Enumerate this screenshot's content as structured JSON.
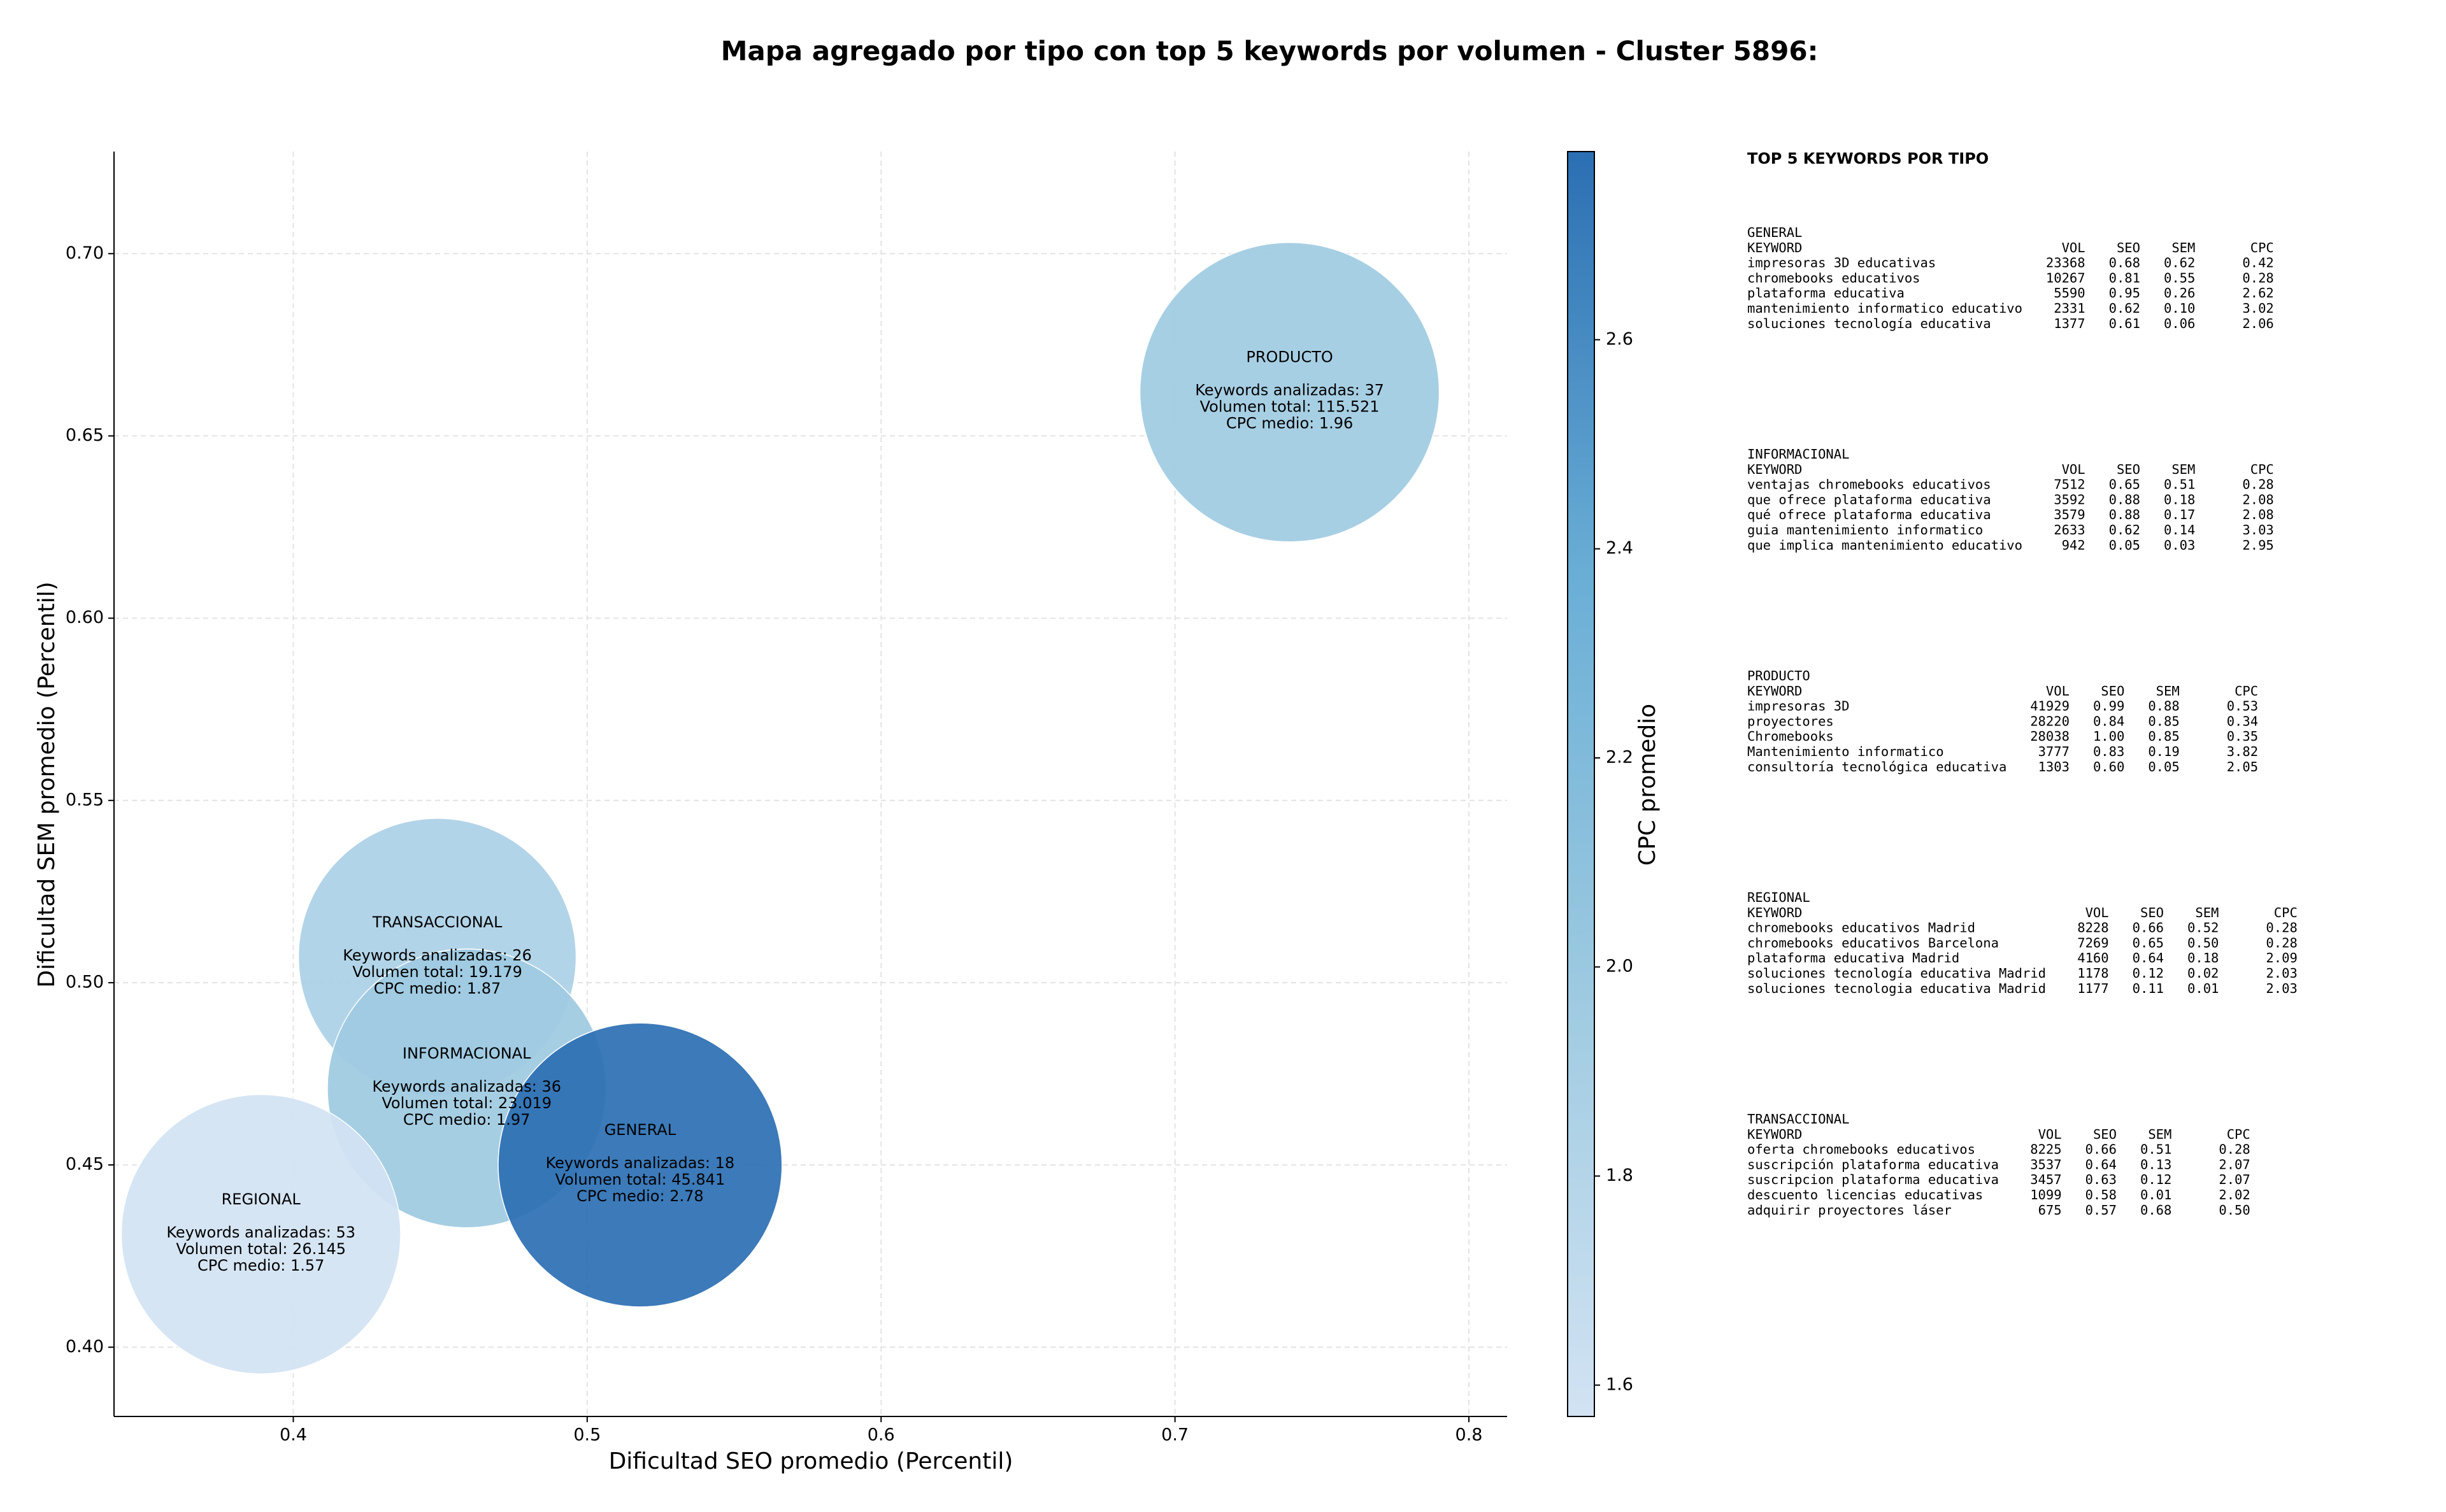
{
  "chart_data": {
    "type": "scatter",
    "title": "Mapa agregado por tipo con top 5 keywords por volumen - Cluster 5896:",
    "x_label": "Dificultad SEO promedio (Percentil)",
    "y_label": "Dificultad SEM promedio (Percentil)",
    "xlim": [
      0.339,
      0.813
    ],
    "xticks": [
      0.4,
      0.5,
      0.6,
      0.7,
      0.8
    ],
    "ylim": [
      0.381,
      0.728
    ],
    "yticks": [
      {
        "value": 0.4,
        "label": "0.40"
      },
      0.45,
      {
        "value": 0.5,
        "label": "0.50"
      },
      0.55,
      {
        "value": 0.6,
        "label": "0.60"
      },
      0.65,
      {
        "value": 0.7,
        "label": "0.70"
      }
    ],
    "grid": true,
    "colormap": [
      "#d2e3f3",
      "#9ecae1",
      "#6aaed6",
      "#2b6fb3"
    ],
    "colorbar": {
      "label": "CPC promedio",
      "lim": [
        1.57,
        2.78
      ],
      "ticks": [
        1.6,
        1.8,
        {
          "value": 2.0,
          "label": "2.0"
        },
        2.2,
        2.4,
        2.6
      ]
    },
    "points": [
      {
        "name": "PRODUCTO",
        "x": 0.739,
        "y": 0.662,
        "size": 115521,
        "cpc": 1.96,
        "labels": [
          "Keywords analizadas: 37",
          "Volumen total: 115.521",
          "CPC medio: 1.96"
        ]
      },
      {
        "name": "TRANSACCIONAL",
        "x": 0.449,
        "y": 0.507,
        "size": 19179,
        "cpc": 1.87,
        "labels": [
          "Keywords analizadas: 26",
          "Volumen total: 19.179",
          "CPC medio: 1.87"
        ]
      },
      {
        "name": "INFORMACIONAL",
        "x": 0.459,
        "y": 0.471,
        "size": 23019,
        "cpc": 1.97,
        "labels": [
          "Keywords analizadas: 36",
          "Volumen total: 23.019",
          "CPC medio: 1.97"
        ]
      },
      {
        "name": "REGIONAL",
        "x": 0.389,
        "y": 0.431,
        "size": 26145,
        "cpc": 1.57,
        "labels": [
          "Keywords analizadas: 53",
          "Volumen total: 26.145",
          "CPC medio: 1.57"
        ]
      },
      {
        "name": "GENERAL",
        "x": 0.518,
        "y": 0.45,
        "size": 45841,
        "cpc": 2.78,
        "labels": [
          "Keywords analizadas: 18",
          "Volumen total: 45.841",
          "CPC medio: 2.78"
        ]
      }
    ]
  },
  "keyword_panel": {
    "title": "TOP 5 KEYWORDS POR TIPO",
    "header": [
      "KEYWORD",
      "VOL",
      "SEO",
      "SEM",
      "CPC"
    ],
    "groups": [
      {
        "name": "GENERAL",
        "rows": [
          [
            "impresoras 3D educativas",
            "23368",
            "0.68",
            "0.62",
            "0.42"
          ],
          [
            "chromebooks educativos",
            "10267",
            "0.81",
            "0.55",
            "0.28"
          ],
          [
            "plataforma educativa",
            "5590",
            "0.95",
            "0.26",
            "2.62"
          ],
          [
            "mantenimiento informatico educativo",
            "2331",
            "0.62",
            "0.10",
            "3.02"
          ],
          [
            "soluciones tecnología educativa",
            "1377",
            "0.61",
            "0.06",
            "2.06"
          ]
        ]
      },
      {
        "name": "INFORMACIONAL",
        "rows": [
          [
            "ventajas chromebooks educativos",
            "7512",
            "0.65",
            "0.51",
            "0.28"
          ],
          [
            "que ofrece plataforma educativa",
            "3592",
            "0.88",
            "0.18",
            "2.08"
          ],
          [
            "qué ofrece plataforma educativa",
            "3579",
            "0.88",
            "0.17",
            "2.08"
          ],
          [
            "guia mantenimiento informatico",
            "2633",
            "0.62",
            "0.14",
            "3.03"
          ],
          [
            "que implica mantenimiento educativo",
            "942",
            "0.05",
            "0.03",
            "2.95"
          ]
        ]
      },
      {
        "name": "PRODUCTO",
        "rows": [
          [
            "impresoras 3D",
            "41929",
            "0.99",
            "0.88",
            "0.53"
          ],
          [
            "proyectores",
            "28220",
            "0.84",
            "0.85",
            "0.34"
          ],
          [
            "Chromebooks",
            "28038",
            "1.00",
            "0.85",
            "0.35"
          ],
          [
            "Mantenimiento informatico",
            "3777",
            "0.83",
            "0.19",
            "3.82"
          ],
          [
            "consultoría tecnológica educativa",
            "1303",
            "0.60",
            "0.05",
            "2.05"
          ]
        ]
      },
      {
        "name": "REGIONAL",
        "rows": [
          [
            "chromebooks educativos Madrid",
            "8228",
            "0.66",
            "0.52",
            "0.28"
          ],
          [
            "chromebooks educativos Barcelona",
            "7269",
            "0.65",
            "0.50",
            "0.28"
          ],
          [
            "plataforma educativa Madrid",
            "4160",
            "0.64",
            "0.18",
            "2.09"
          ],
          [
            "soluciones tecnología educativa Madrid",
            "1178",
            "0.12",
            "0.02",
            "2.03"
          ],
          [
            "soluciones tecnologia educativa Madrid",
            "1177",
            "0.11",
            "0.01",
            "2.03"
          ]
        ]
      },
      {
        "name": "TRANSACCIONAL",
        "rows": [
          [
            "oferta chromebooks educativos",
            "8225",
            "0.66",
            "0.51",
            "0.28"
          ],
          [
            "suscripción plataforma educativa",
            "3537",
            "0.64",
            "0.13",
            "2.07"
          ],
          [
            "suscripcion plataforma educativa",
            "3457",
            "0.63",
            "0.12",
            "2.07"
          ],
          [
            "descuento licencias educativas",
            "1099",
            "0.58",
            "0.01",
            "2.02"
          ],
          [
            "adquirir proyectores láser",
            "675",
            "0.57",
            "0.68",
            "0.50"
          ]
        ]
      }
    ]
  }
}
